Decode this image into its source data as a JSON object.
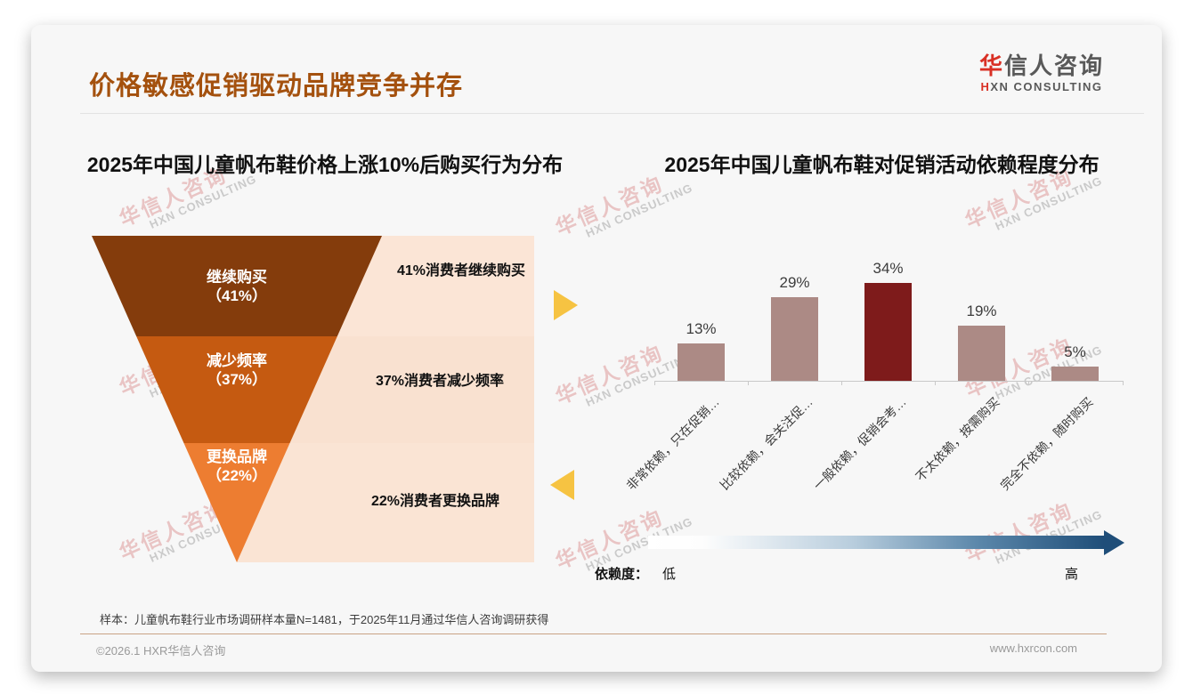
{
  "slide": {
    "title": "价格敏感促销驱动品牌竞争并存",
    "logo": {
      "zh_accent": "华",
      "zh_rest": "信人咨询",
      "en_accent": "H",
      "en_rest": "XN CONSULTING"
    },
    "watermark": {
      "line1": "华信人咨询",
      "line2": "HXN CONSULTING"
    },
    "note": "样本：儿童帆布鞋行业市场调研样本量N=1481，于2025年11月通过华信人咨询调研获得",
    "footer": {
      "copyright": "©2026.1 HXR华信人咨询",
      "website": "www.hxrcon.com"
    },
    "colors": {
      "title_accent": "#a4510e",
      "logo_red": "#d93025",
      "arrow_blue": "#1f4e79",
      "marker_gold": "#f6c342",
      "card_background": "#f7f7f7"
    }
  },
  "chart_data": [
    {
      "type": "funnel",
      "title": "2025年中国儿童帆布鞋价格上涨10%后购买行为分布",
      "stages": [
        {
          "label": "继续购买",
          "pct_label": "（41%）",
          "value": 41,
          "color": "#843c0c",
          "annotation": "41%消费者继续购买"
        },
        {
          "label": "减少频率",
          "pct_label": "（37%）",
          "value": 37,
          "color": "#c55a11",
          "annotation": "37%消费者减少频率"
        },
        {
          "label": "更换品牌",
          "pct_label": "（22%）",
          "value": 22,
          "color": "#ed7d31",
          "annotation": "22%消费者更换品牌"
        }
      ]
    },
    {
      "type": "bar",
      "title": "2025年中国儿童帆布鞋对促销活动依赖程度分布",
      "categories": [
        "非常依赖，只在促销…",
        "比较依赖，会关注促…",
        "一般依赖，促销会考…",
        "不太依赖，按需购买",
        "完全不依赖，随时购买"
      ],
      "values": [
        13,
        29,
        34,
        19,
        5
      ],
      "value_labels": [
        "13%",
        "29%",
        "34%",
        "19%",
        "5%"
      ],
      "bar_color": "#ac8a85",
      "highlight_index": 2,
      "highlight_color": "#7e1b1b",
      "ylim": [
        0,
        40
      ],
      "grid": false,
      "legend": {
        "title": "依赖度：",
        "low": "低",
        "high": "高"
      }
    }
  ]
}
